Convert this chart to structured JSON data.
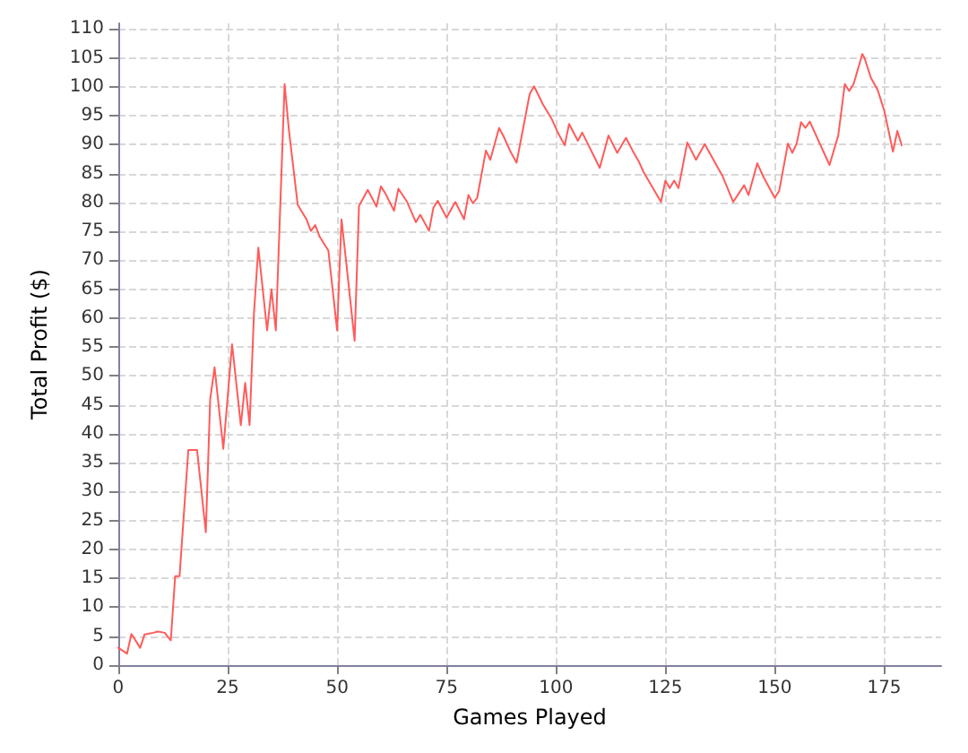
{
  "chart_data": {
    "type": "line",
    "xlabel": "Games Played",
    "ylabel": "Total Profit ($)",
    "x": [
      0,
      2,
      3,
      5,
      6,
      8,
      9,
      10.6,
      12,
      13,
      14,
      16,
      18,
      20,
      21,
      22,
      24,
      26,
      28,
      29,
      30,
      31,
      32,
      34,
      35,
      36,
      38,
      39,
      41,
      43,
      44,
      45,
      46,
      48,
      50,
      51,
      52,
      54,
      55,
      57,
      59,
      60,
      61,
      63,
      64,
      66,
      68,
      69,
      71,
      72,
      73,
      75,
      77,
      79,
      80,
      81,
      82,
      84,
      85,
      87,
      88,
      89.5,
      91,
      94,
      95,
      97,
      99,
      100.5,
      102,
      103,
      105,
      106,
      110,
      112,
      114,
      116,
      117.5,
      119,
      120,
      124,
      125,
      126,
      127,
      128,
      130,
      132,
      134,
      137,
      138,
      140.5,
      143,
      144,
      146,
      147.5,
      150,
      151,
      153,
      154,
      155,
      156,
      157,
      158,
      162.5,
      164.5,
      166,
      167,
      168,
      170,
      170.5,
      172,
      173.5,
      175,
      176,
      177,
      178,
      179
    ],
    "series": [
      {
        "color": "#ff5b5b",
        "values": [
          3,
          2,
          5.4,
          3,
          5.3,
          5.6,
          5.8,
          5.6,
          4.3,
          15.4,
          15.4,
          37.2,
          37.2,
          23,
          46,
          51.5,
          37.4,
          55.5,
          41.5,
          48.8,
          41.5,
          60.8,
          72.2,
          57.9,
          65,
          57.9,
          100.5,
          92.4,
          79.6,
          77.1,
          75.1,
          76.1,
          74.1,
          71.7,
          57.9,
          77.1,
          70.2,
          56.1,
          79.4,
          82.2,
          79.3,
          82.8,
          81.6,
          78.6,
          82.4,
          80.1,
          76.6,
          77.9,
          75.1,
          79.1,
          80.3,
          77.4,
          80.1,
          77.1,
          81.3,
          79.9,
          80.8,
          89,
          87.4,
          92.9,
          91.5,
          89,
          86.9,
          98.8,
          100.1,
          97,
          94.5,
          92,
          89.9,
          93.6,
          90.7,
          92.1,
          86,
          91.6,
          88.6,
          91.2,
          89,
          87,
          85.3,
          80.1,
          83.8,
          82.5,
          83.8,
          82.5,
          90.4,
          87.4,
          90.1,
          86,
          84.7,
          80.1,
          83,
          81.3,
          86.8,
          84.3,
          80.8,
          82,
          90.2,
          88.6,
          90.2,
          93.9,
          92.9,
          94,
          86.5,
          91.6,
          100.5,
          99.3,
          100.5,
          105.7,
          105,
          101.5,
          99.5,
          95.9,
          92.4,
          88.8,
          92.4,
          89.9
        ]
      }
    ],
    "xlim": [
      0,
      188
    ],
    "xticks": [
      0,
      25,
      50,
      75,
      100,
      125,
      150,
      175
    ],
    "ylim": [
      0,
      111
    ],
    "yticks": [
      0,
      5,
      10,
      15,
      20,
      25,
      30,
      35,
      40,
      45,
      50,
      55,
      60,
      65,
      70,
      75,
      80,
      85,
      90,
      95,
      100,
      105,
      110
    ],
    "grid": true,
    "marker": "none",
    "line_style": "solid"
  }
}
